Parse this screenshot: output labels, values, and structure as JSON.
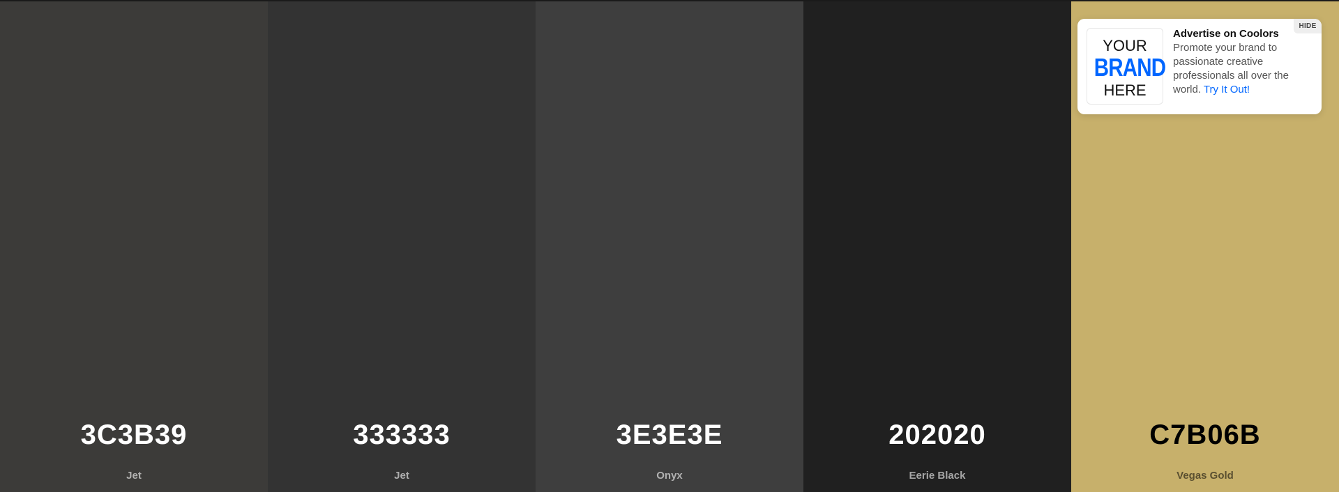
{
  "palette": {
    "swatches": [
      {
        "hex": "3C3B39",
        "name": "Jet",
        "color": "#3C3B39",
        "tone": "dark"
      },
      {
        "hex": "333333",
        "name": "Jet",
        "color": "#333333",
        "tone": "dark"
      },
      {
        "hex": "3E3E3E",
        "name": "Onyx",
        "color": "#3E3E3E",
        "tone": "dark"
      },
      {
        "hex": "202020",
        "name": "Eerie Black",
        "color": "#202020",
        "tone": "dark"
      },
      {
        "hex": "C7B06B",
        "name": "Vegas Gold",
        "color": "#C7B06B",
        "tone": "light"
      }
    ]
  },
  "ad": {
    "logo": {
      "line1": "YOUR",
      "line2": "BRAND",
      "line3": "HERE"
    },
    "title": "Advertise on Coolors",
    "body": "Promote your brand to passionate creative professionals all over the world.",
    "link": "Try It Out!",
    "hide": "HIDE"
  }
}
